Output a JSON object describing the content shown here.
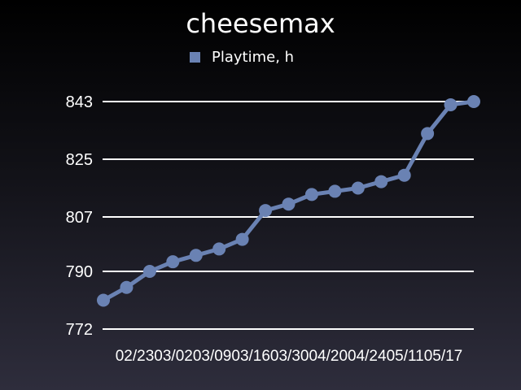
{
  "colors": {
    "series": "#6a82b3",
    "grid": "#ffffff",
    "text": "#ffffff"
  },
  "chart_data": {
    "type": "line",
    "title": "cheesemax",
    "legend_position": "top",
    "grid": true,
    "ylim": [
      772,
      843
    ],
    "yticks": [
      "772",
      "790",
      "807",
      "825",
      "843"
    ],
    "xtick_labels": [
      "02/23",
      "03/02",
      "03/09",
      "03/16",
      "03/30",
      "04/20",
      "04/24",
      "05/11",
      "05/17"
    ],
    "series": [
      {
        "name": "Playtime, h",
        "values": [
          781,
          785,
          790,
          793,
          795,
          797,
          800,
          809,
          811,
          814,
          815,
          816,
          818,
          820,
          833,
          842,
          843
        ]
      }
    ]
  }
}
